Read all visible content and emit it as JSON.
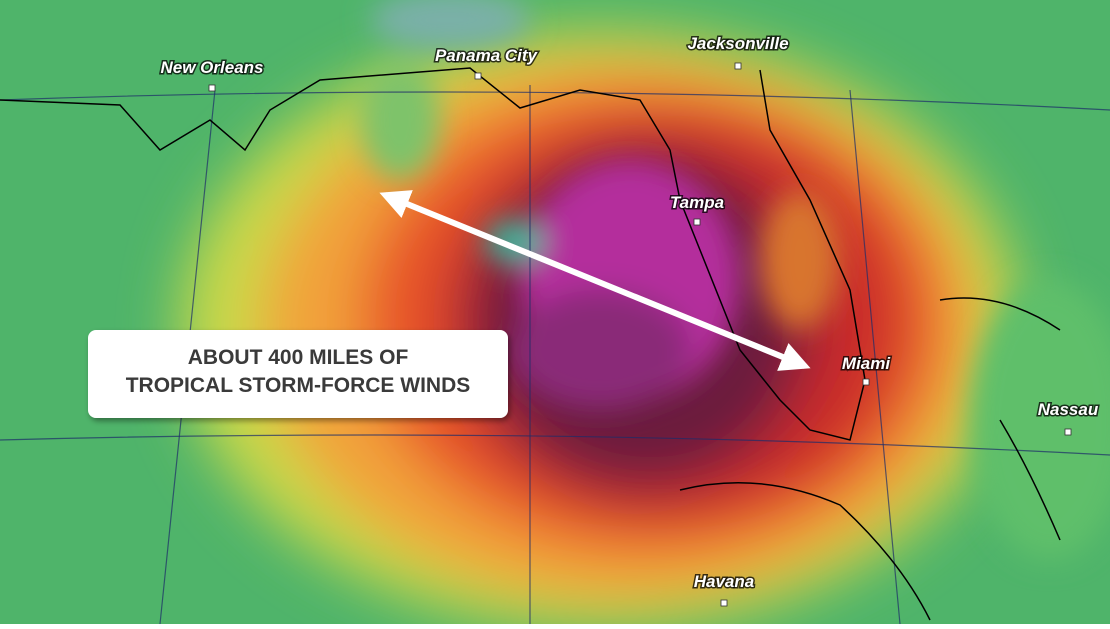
{
  "callout": {
    "lines": [
      "ABOUT 400 MILES OF",
      "TROPICAL STORM-FORCE WINDS"
    ]
  },
  "cities": [
    {
      "label": "New Orleans"
    },
    {
      "label": "Panama City"
    },
    {
      "label": "Jacksonville"
    },
    {
      "label": "Tampa"
    },
    {
      "label": "Miami"
    },
    {
      "label": "Nassau"
    },
    {
      "label": "Havana"
    }
  ]
}
